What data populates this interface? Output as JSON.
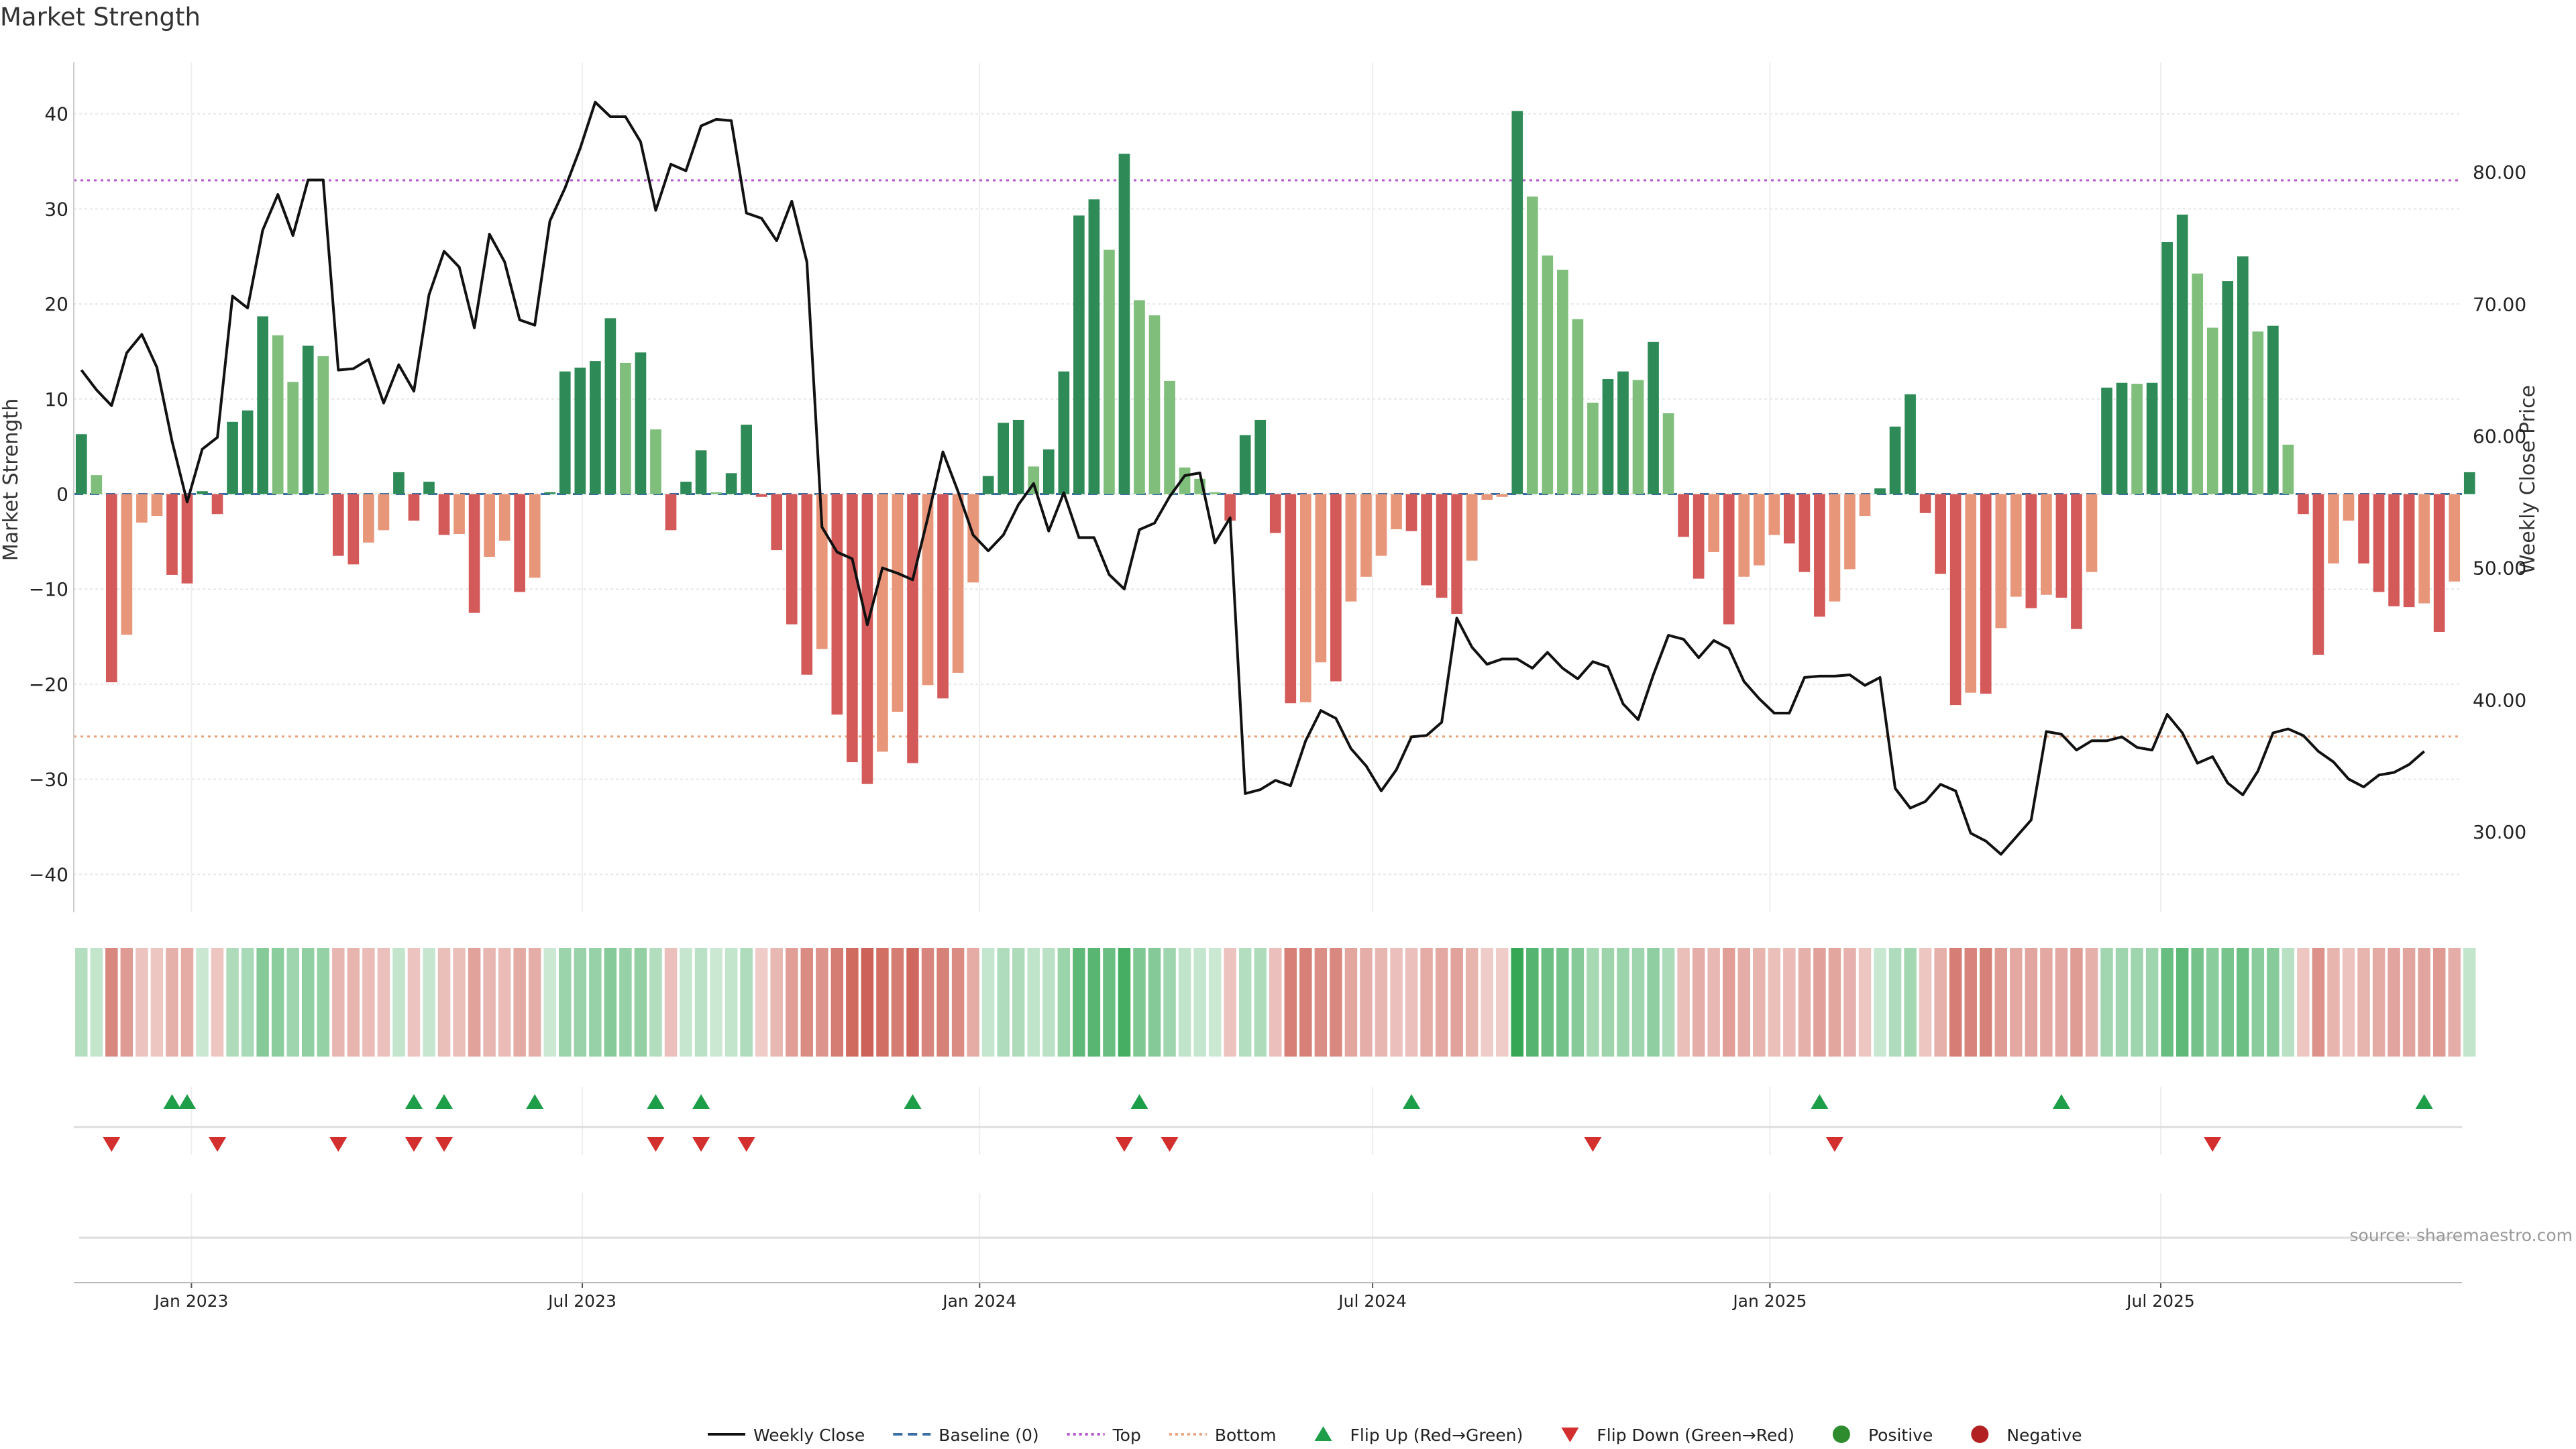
{
  "chart_data": {
    "type": "bar+line",
    "title": "Market Strength",
    "ylabel_left": "Market Strength",
    "ylabel_right": "Weekly Close Price",
    "ylim_left": [
      -44,
      44
    ],
    "ylim_right": [
      23.9,
      87.3
    ],
    "yticks_left": [
      40,
      30,
      20,
      10,
      0,
      -10,
      -20,
      -30,
      -40
    ],
    "yticks_left_labels": [
      "40",
      "30",
      "20",
      "10",
      "0",
      "−10",
      "−20",
      "−30",
      "−40"
    ],
    "yticks_right": [
      80,
      70,
      60,
      50,
      40,
      30
    ],
    "yticks_right_labels": [
      "80.00",
      "70.00",
      "60.00",
      "50.00",
      "40.00",
      "30.00"
    ],
    "x_start": "2022-11-11",
    "week_count": 158,
    "xtick_dates": [
      "2023-01-01",
      "2023-07-01",
      "2024-01-01",
      "2024-07-01",
      "2025-01-01",
      "2025-07-01"
    ],
    "xtick_labels": [
      "Jan 2023",
      "Jul 2023",
      "Jan 2024",
      "Jul 2024",
      "Jan 2025",
      "Jul 2025"
    ],
    "top_line": 33,
    "bottom_line": -25.5,
    "strength": [
      6.3,
      2.0,
      -19.8,
      -14.8,
      -3.0,
      -2.3,
      -8.5,
      -9.4,
      0.3,
      -2.1,
      7.6,
      8.8,
      18.7,
      16.7,
      11.8,
      15.6,
      14.5,
      -6.5,
      -7.4,
      -5.1,
      -3.8,
      2.3,
      -2.8,
      1.3,
      -4.3,
      -4.2,
      -12.5,
      -6.6,
      -4.9,
      -10.3,
      -8.8,
      0.2,
      12.9,
      13.3,
      14.0,
      18.5,
      13.8,
      14.9,
      6.8,
      -3.8,
      1.3,
      4.6,
      0.2,
      2.2,
      7.3,
      -0.3,
      -5.9,
      -13.7,
      -19.0,
      -16.3,
      -23.2,
      -28.2,
      -30.5,
      -27.1,
      -22.9,
      -28.3,
      -20.1,
      -21.5,
      -18.8,
      -9.3,
      1.9,
      7.5,
      7.8,
      2.9,
      4.7,
      12.9,
      29.3,
      31.0,
      25.7,
      35.8,
      20.4,
      18.8,
      11.9,
      2.8,
      1.6,
      0.2,
      -2.8,
      6.2,
      7.8,
      -4.1,
      -22.0,
      -21.9,
      -17.7,
      -19.7,
      -11.3,
      -8.7,
      -6.5,
      -3.7,
      -3.9,
      -9.6,
      -10.9,
      -12.6,
      -7.0,
      -0.6,
      -0.3,
      40.3,
      31.3,
      25.1,
      23.6,
      18.4,
      9.6,
      12.1,
      12.9,
      12.0,
      16.0,
      8.5,
      -4.5,
      -8.9,
      -6.1,
      -13.7,
      -8.7,
      -7.5,
      -4.3,
      -5.2,
      -8.2,
      -12.9,
      -11.3,
      -7.9,
      -2.3,
      0.6,
      7.1,
      10.5,
      -2.0,
      -8.4,
      -22.2,
      -20.9,
      -21.0,
      -14.1,
      -10.8,
      -12.0,
      -10.6,
      -10.9,
      -14.2,
      -8.2,
      11.2,
      11.7,
      11.6,
      11.7,
      26.5,
      29.4,
      23.2,
      17.5,
      22.4,
      25.0,
      17.1,
      17.7,
      5.2,
      -2.1,
      -16.9,
      -7.3,
      -2.8,
      -7.3,
      -10.3,
      -11.8,
      -11.9,
      -11.5,
      -14.5,
      -9.2,
      2.3
    ],
    "weekly_close": [
      65.0,
      63.5,
      62.3,
      66.3,
      67.7,
      65.2,
      59.6,
      55.0,
      59.0,
      59.9,
      70.6,
      69.7,
      75.6,
      78.3,
      75.2,
      79.4,
      79.4,
      65.0,
      65.1,
      65.8,
      62.5,
      65.4,
      63.4,
      70.7,
      74.0,
      72.8,
      68.2,
      75.3,
      73.2,
      68.8,
      68.4,
      76.3,
      78.8,
      81.8,
      85.3,
      84.2,
      84.2,
      82.3,
      77.1,
      80.6,
      80.1,
      83.5,
      84.0,
      83.9,
      76.9,
      76.5,
      74.8,
      77.8,
      73.2,
      53.1,
      51.2,
      50.7,
      45.7,
      50.0,
      49.6,
      49.1,
      53.8,
      58.8,
      55.8,
      52.5,
      51.3,
      52.5,
      54.8,
      56.4,
      52.8,
      55.7,
      52.3,
      52.3,
      49.5,
      48.4,
      52.9,
      53.4,
      55.4,
      57.0,
      57.2,
      51.9,
      53.8,
      32.9,
      33.2,
      33.9,
      33.5,
      36.9,
      39.2,
      38.6,
      36.3,
      35.0,
      33.1,
      34.7,
      37.2,
      37.3,
      38.3,
      46.2,
      44.0,
      42.7,
      43.1,
      43.1,
      42.4,
      43.6,
      42.4,
      41.6,
      42.9,
      42.5,
      39.7,
      38.5,
      41.9,
      44.9,
      44.6,
      43.2,
      44.5,
      43.9,
      41.4,
      40.1,
      39.0,
      39.0,
      41.7,
      41.8,
      41.8,
      41.9,
      41.1,
      41.7,
      33.3,
      31.8,
      32.3,
      33.6,
      33.1,
      29.9,
      29.3,
      28.3,
      29.6,
      30.9,
      37.6,
      37.4,
      36.2,
      36.9,
      36.9,
      37.2,
      36.4,
      36.2,
      38.9,
      37.5,
      35.2,
      35.7,
      33.7,
      32.8,
      34.6,
      37.5,
      37.8,
      37.3,
      36.1,
      35.3,
      34.0,
      33.4,
      34.3,
      34.5,
      35.1,
      36.1
    ],
    "flip_up_dates": [
      "2022-12-23",
      "2022-12-30",
      "2023-04-14",
      "2023-04-28",
      "2023-06-09",
      "2023-08-04",
      "2023-08-25",
      "2023-12-01",
      "2024-03-15",
      "2024-07-19",
      "2025-01-24",
      "2025-05-16",
      "2025-10-31"
    ],
    "flip_down_dates": [
      "2022-11-25",
      "2023-01-13",
      "2023-03-10",
      "2023-04-14",
      "2023-04-28",
      "2023-08-04",
      "2023-08-25",
      "2023-09-15",
      "2024-03-08",
      "2024-03-29",
      "2024-10-11",
      "2025-01-31",
      "2025-07-25"
    ],
    "legend": [
      {
        "type": "line",
        "label": "Weekly Close",
        "color": "#111111",
        "dash": "solid"
      },
      {
        "type": "line",
        "label": "Baseline (0)",
        "color": "#3a6ea5",
        "dash": "dashed"
      },
      {
        "type": "line",
        "label": "Top",
        "color": "#b455cc",
        "dash": "dotted"
      },
      {
        "type": "line",
        "label": "Bottom",
        "color": "#e8a37e",
        "dash": "dotted"
      },
      {
        "type": "marker",
        "label": "Flip Up (Red→Green)",
        "color": "#1f9e4a",
        "shape": "triangle-up"
      },
      {
        "type": "marker",
        "label": "Flip Down (Green→Red)",
        "color": "#d32f2f",
        "shape": "triangle-down"
      },
      {
        "type": "marker",
        "label": "Positive",
        "color": "#2e8b2e",
        "shape": "circle"
      },
      {
        "type": "marker",
        "label": "Negative",
        "color": "#b22222",
        "shape": "circle"
      }
    ],
    "source": "source: sharemaestro.com",
    "colors": {
      "pos_strong": "#2e8b57",
      "pos_weak": "#7fbf7b",
      "neg_strong": "#d45a5a",
      "neg_weak": "#e8967a",
      "heat_pos": "#2ea44f",
      "heat_neg": "#c0392b",
      "top": "#b455cc",
      "bottom": "#e8a37e",
      "baseline": "#3a6ea5",
      "price": "#111111",
      "flip_up": "#1f9e4a",
      "flip_down": "#d32f2f",
      "grid": "#e6e6e6",
      "axis_text": "#222222",
      "source_text": "#999999"
    }
  }
}
